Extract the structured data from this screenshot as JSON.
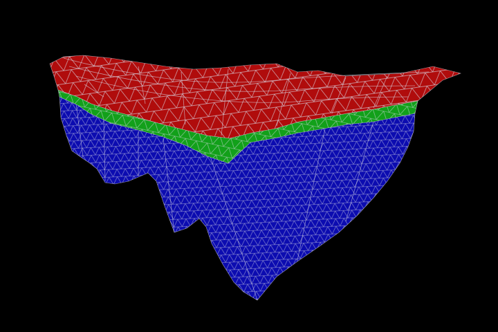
{
  "viewport": {
    "background_color": "#000000"
  },
  "model": {
    "render_style": "triangulated wireframe over filled surfaces",
    "wireframe_color": "#d9d9e6",
    "layers": [
      {
        "id": "top-layer",
        "color": "#b00c0c"
      },
      {
        "id": "middle-layer",
        "color": "#12a01a"
      },
      {
        "id": "bottom-layer",
        "color": "#0c0cb0"
      }
    ]
  }
}
